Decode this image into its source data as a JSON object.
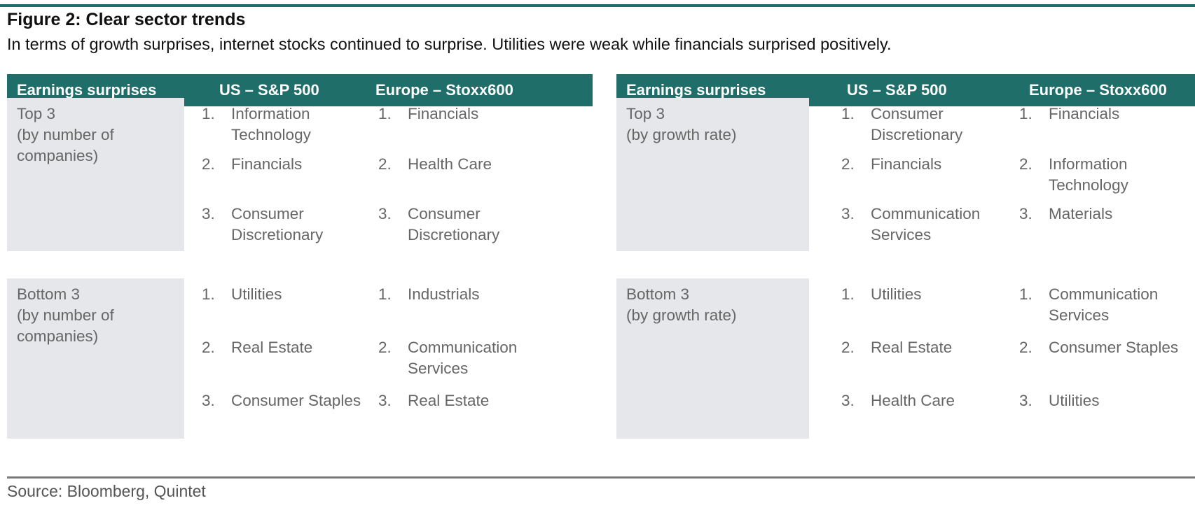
{
  "figure": {
    "title": "Figure 2: Clear sector trends",
    "subtitle": "In terms of growth surprises, internet stocks continued to surprise. Utilities were weak while financials surprised positively."
  },
  "tables": [
    {
      "headers": [
        "Earnings surprises",
        "US – S&P 500",
        "Europe – Stoxx600"
      ],
      "rows": [
        {
          "label": [
            "Top 3",
            "(by number of",
            "companies)"
          ],
          "us": [
            {
              "n": "1.",
              "t": "Information Technology"
            },
            {
              "n": "2.",
              "t": "Financials"
            },
            {
              "n": "3.",
              "t": "Consumer Discretionary"
            }
          ],
          "eu": [
            {
              "n": "1.",
              "t": "Financials"
            },
            {
              "n": "2.",
              "t": "Health Care"
            },
            {
              "n": "3.",
              "t": "Consumer Discretionary"
            }
          ]
        },
        {
          "label": [
            "Bottom 3",
            "(by number of",
            "companies)"
          ],
          "us": [
            {
              "n": "1.",
              "t": "Utilities"
            },
            {
              "n": "2.",
              "t": "Real Estate"
            },
            {
              "n": "3.",
              "t": "Consumer Staples"
            }
          ],
          "eu": [
            {
              "n": "1.",
              "t": "Industrials"
            },
            {
              "n": "2.",
              "t": "Communication Services"
            },
            {
              "n": "3.",
              "t": "Real Estate"
            }
          ]
        }
      ]
    },
    {
      "headers": [
        "Earnings surprises",
        "US – S&P 500",
        "Europe – Stoxx600"
      ],
      "rows": [
        {
          "label": [
            "Top 3",
            "(by growth rate)"
          ],
          "us": [
            {
              "n": "1.",
              "t": "Consumer Discretionary"
            },
            {
              "n": "2.",
              "t": "Financials"
            },
            {
              "n": "3.",
              "t": "Communication Services"
            }
          ],
          "eu": [
            {
              "n": "1.",
              "t": "Financials"
            },
            {
              "n": "2.",
              "t": "Information Technology"
            },
            {
              "n": "3.",
              "t": "Materials"
            }
          ]
        },
        {
          "label": [
            "Bottom 3",
            "(by growth rate)"
          ],
          "us": [
            {
              "n": "1.",
              "t": "Utilities"
            },
            {
              "n": "2.",
              "t": "Real Estate"
            },
            {
              "n": "3.",
              "t": "Health Care"
            }
          ],
          "eu": [
            {
              "n": "1.",
              "t": "Communication Services"
            },
            {
              "n": "2.",
              "t": "Consumer Staples"
            },
            {
              "n": "3.",
              "t": "Utilities"
            }
          ]
        }
      ]
    }
  ],
  "source": "Source: Bloomberg, Quintet",
  "colors": {
    "header_bg": "#1f6e6a",
    "label_bg": "#e5e7ea",
    "body_text": "#666666"
  }
}
